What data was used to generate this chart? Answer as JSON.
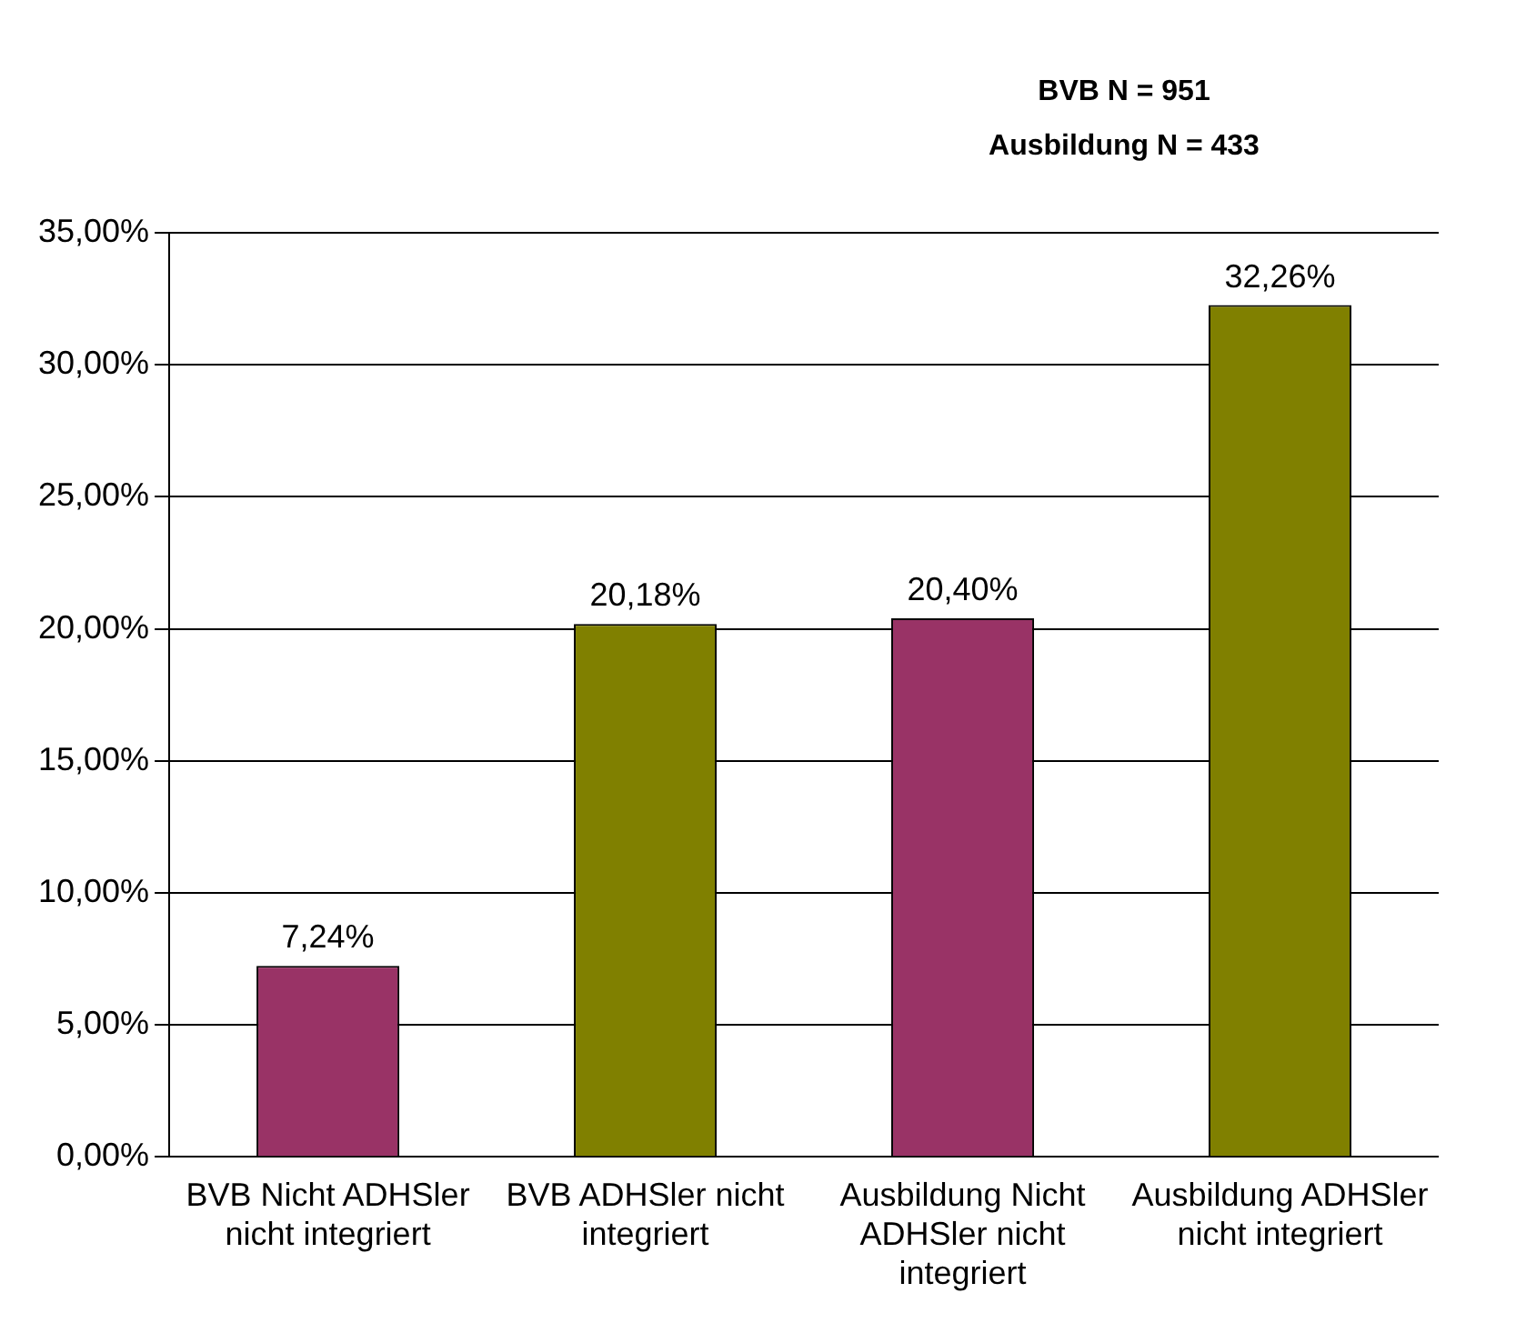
{
  "chart_data": {
    "type": "bar",
    "categories": [
      "BVB Nicht ADHSler nicht integriert",
      "BVB ADHSler nicht integriert",
      "Ausbildung Nicht ADHSler nicht integriert",
      "Ausbildung ADHSler nicht integriert"
    ],
    "values": [
      7.24,
      20.18,
      20.4,
      32.26
    ],
    "colors": [
      "#993366",
      "#808000",
      "#993366",
      "#808000"
    ],
    "value_labels": [
      "7,24%",
      "20,18%",
      "20,40%",
      "32,26%"
    ],
    "ylim": [
      0,
      35
    ],
    "yticks": [
      {
        "value": 0,
        "label": "0,00%"
      },
      {
        "value": 5,
        "label": "5,00%"
      },
      {
        "value": 10,
        "label": "10,00%"
      },
      {
        "value": 15,
        "label": "15,00%"
      },
      {
        "value": 20,
        "label": "20,00%"
      },
      {
        "value": 25,
        "label": "25,00%"
      },
      {
        "value": 30,
        "label": "30,00%"
      },
      {
        "value": 35,
        "label": "35,00%"
      }
    ],
    "grid": "y",
    "annotations": [
      "BVB N = 951",
      "Ausbildung N = 433"
    ]
  }
}
